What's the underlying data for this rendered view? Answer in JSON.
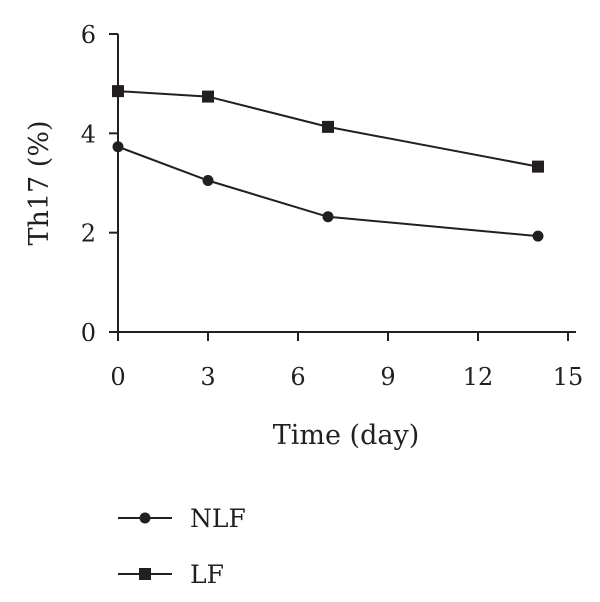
{
  "chart_data": {
    "type": "line",
    "title": "",
    "xlabel": "Time (day)",
    "ylabel": "Th17 (%)",
    "xlim": [
      0,
      15
    ],
    "ylim": [
      0,
      6
    ],
    "xticks": [
      0,
      3,
      6,
      9,
      12,
      15
    ],
    "yticks": [
      0,
      2,
      4,
      6
    ],
    "x_tick_labels": [
      "0",
      "3",
      "6",
      "9",
      "12",
      "15"
    ],
    "y_tick_labels": [
      "0",
      "2",
      "4",
      "6"
    ],
    "grid": false,
    "legend_position": "bottom-left",
    "series": [
      {
        "name": "NLF",
        "marker": "circle",
        "x": [
          0,
          3,
          7,
          14
        ],
        "y": [
          3.73,
          3.05,
          2.32,
          1.93
        ],
        "color": "#231f20"
      },
      {
        "name": "LF",
        "marker": "square",
        "x": [
          0,
          3,
          7,
          14
        ],
        "y": [
          4.85,
          4.74,
          4.13,
          3.33
        ],
        "color": "#231f20"
      }
    ]
  }
}
